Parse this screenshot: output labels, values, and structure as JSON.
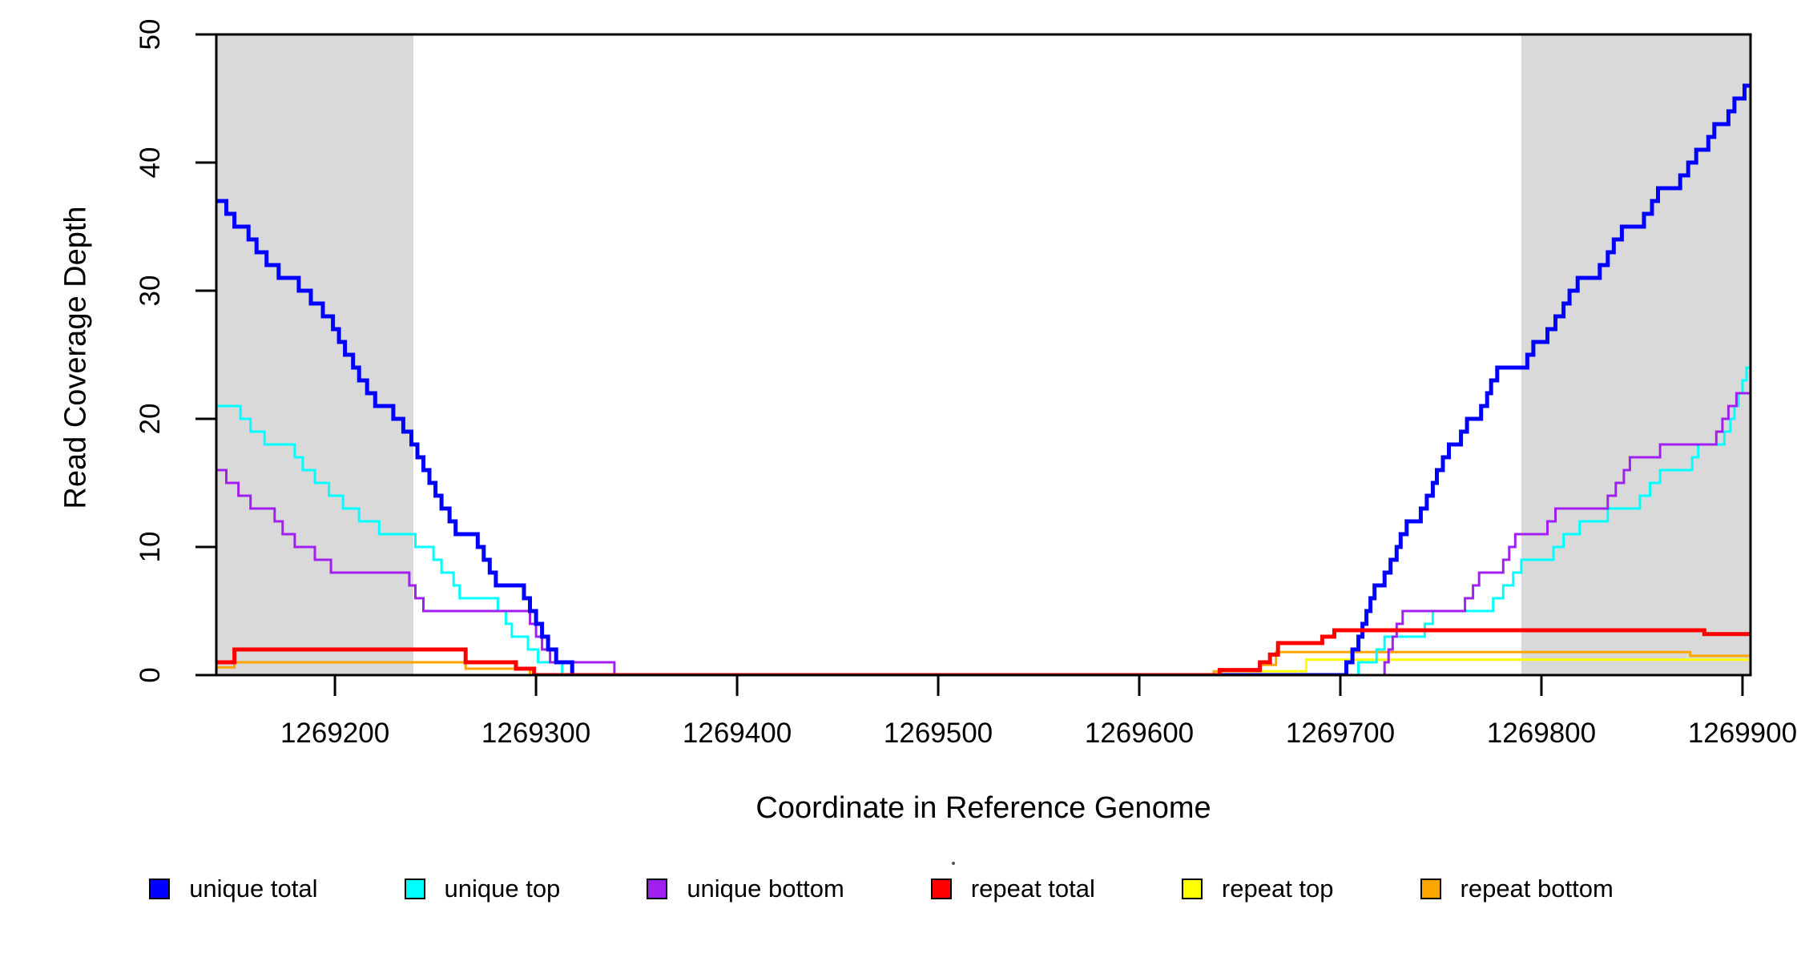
{
  "axes": {
    "xlabel": "Coordinate in Reference Genome",
    "ylabel": "Read Coverage Depth",
    "xlim": [
      1269141,
      1269904
    ],
    "ylim": [
      0,
      50
    ],
    "xticks": [
      {
        "value": 1269200,
        "label": "1269200"
      },
      {
        "value": 1269300,
        "label": "1269300"
      },
      {
        "value": 1269400,
        "label": "1269400"
      },
      {
        "value": 1269500,
        "label": "1269500"
      },
      {
        "value": 1269600,
        "label": "1269600"
      },
      {
        "value": 1269700,
        "label": "1269700"
      },
      {
        "value": 1269800,
        "label": "1269800"
      },
      {
        "value": 1269900,
        "label": "1269900"
      }
    ],
    "yticks": [
      {
        "value": 0,
        "label": "0"
      },
      {
        "value": 10,
        "label": "10"
      },
      {
        "value": 20,
        "label": "20"
      },
      {
        "value": 30,
        "label": "30"
      },
      {
        "value": 40,
        "label": "40"
      },
      {
        "value": 50,
        "label": "50"
      }
    ]
  },
  "chart_data": {
    "type": "line",
    "subtype": "step-coverage",
    "grid": false,
    "legend_position": "bottom",
    "background_color": "#ffffff",
    "shaded_band_color": "#d9d9d9",
    "shaded_regions": [
      {
        "name": "left-unique-flank",
        "from": 1269141,
        "to": 1269239
      },
      {
        "name": "right-unique-flank",
        "from": 1269790,
        "to": 1269904
      }
    ],
    "series": [
      {
        "name": "repeat top",
        "color": "#ffff00",
        "width": 3,
        "points": [
          [
            1269141,
            0
          ],
          [
            1269655,
            0.3
          ],
          [
            1269683,
            1.2
          ]
        ]
      },
      {
        "name": "repeat bottom",
        "color": "#ffa500",
        "width": 3,
        "points": [
          [
            1269141,
            0.6
          ],
          [
            1269150,
            1
          ],
          [
            1269265,
            0.5
          ],
          [
            1269297,
            0
          ],
          [
            1269637,
            0.3
          ],
          [
            1269660,
            0.8
          ],
          [
            1269668,
            1.8
          ],
          [
            1269874,
            1.5
          ]
        ]
      },
      {
        "name": "unique top",
        "color": "#00ffff",
        "width": 3,
        "points": [
          [
            1269141,
            21
          ],
          [
            1269153,
            20
          ],
          [
            1269158,
            19
          ],
          [
            1269165,
            18
          ],
          [
            1269180,
            17
          ],
          [
            1269184,
            16
          ],
          [
            1269190,
            15
          ],
          [
            1269197,
            14
          ],
          [
            1269204,
            13
          ],
          [
            1269212,
            12
          ],
          [
            1269222,
            11
          ],
          [
            1269240,
            10
          ],
          [
            1269249,
            9
          ],
          [
            1269253,
            8
          ],
          [
            1269259,
            7
          ],
          [
            1269262,
            6
          ],
          [
            1269281,
            5
          ],
          [
            1269285,
            4
          ],
          [
            1269288,
            3
          ],
          [
            1269296,
            2
          ],
          [
            1269301,
            1
          ],
          [
            1269313,
            0
          ],
          [
            1269706,
            0
          ],
          [
            1269709,
            1
          ],
          [
            1269718,
            2
          ],
          [
            1269722,
            3
          ],
          [
            1269742,
            4
          ],
          [
            1269746,
            5
          ],
          [
            1269776,
            6
          ],
          [
            1269781,
            7
          ],
          [
            1269786,
            8
          ],
          [
            1269790,
            9
          ],
          [
            1269806,
            10
          ],
          [
            1269811,
            11
          ],
          [
            1269819,
            12
          ],
          [
            1269833,
            13
          ],
          [
            1269849,
            14
          ],
          [
            1269854,
            15
          ],
          [
            1269859,
            16
          ],
          [
            1269875,
            17
          ],
          [
            1269878,
            18
          ],
          [
            1269891,
            19
          ],
          [
            1269894,
            20
          ],
          [
            1269896,
            21
          ],
          [
            1269898,
            22
          ],
          [
            1269900,
            23
          ],
          [
            1269902,
            24
          ]
        ]
      },
      {
        "name": "unique bottom",
        "color": "#a020f0",
        "width": 3,
        "points": [
          [
            1269141,
            16
          ],
          [
            1269146,
            15
          ],
          [
            1269152,
            14
          ],
          [
            1269158,
            13
          ],
          [
            1269170,
            12
          ],
          [
            1269174,
            11
          ],
          [
            1269180,
            10
          ],
          [
            1269190,
            9
          ],
          [
            1269198,
            8
          ],
          [
            1269237,
            7
          ],
          [
            1269240,
            6
          ],
          [
            1269244,
            5
          ],
          [
            1269297,
            4
          ],
          [
            1269300,
            3
          ],
          [
            1269303,
            2
          ],
          [
            1269307,
            1
          ],
          [
            1269339,
            0
          ],
          [
            1269719,
            0
          ],
          [
            1269722,
            1
          ],
          [
            1269724,
            2
          ],
          [
            1269726,
            3
          ],
          [
            1269728,
            4
          ],
          [
            1269731,
            5
          ],
          [
            1269762,
            6
          ],
          [
            1269766,
            7
          ],
          [
            1269769,
            8
          ],
          [
            1269781,
            9
          ],
          [
            1269784,
            10
          ],
          [
            1269787,
            11
          ],
          [
            1269803,
            12
          ],
          [
            1269807,
            13
          ],
          [
            1269833,
            14
          ],
          [
            1269837,
            15
          ],
          [
            1269841,
            16
          ],
          [
            1269844,
            17
          ],
          [
            1269859,
            18
          ],
          [
            1269887,
            19
          ],
          [
            1269890,
            20
          ],
          [
            1269893,
            21
          ],
          [
            1269897,
            22
          ]
        ]
      },
      {
        "name": "unique total",
        "color": "#0000ff",
        "width": 5,
        "points": [
          [
            1269141,
            37
          ],
          [
            1269146,
            36
          ],
          [
            1269150,
            35
          ],
          [
            1269157,
            34
          ],
          [
            1269161,
            33
          ],
          [
            1269166,
            32
          ],
          [
            1269172,
            31
          ],
          [
            1269182,
            30
          ],
          [
            1269188,
            29
          ],
          [
            1269194,
            28
          ],
          [
            1269199,
            27
          ],
          [
            1269202,
            26
          ],
          [
            1269205,
            25
          ],
          [
            1269209,
            24
          ],
          [
            1269212,
            23
          ],
          [
            1269216,
            22
          ],
          [
            1269220,
            21
          ],
          [
            1269229,
            20
          ],
          [
            1269234,
            19
          ],
          [
            1269238,
            18
          ],
          [
            1269241,
            17
          ],
          [
            1269244,
            16
          ],
          [
            1269247,
            15
          ],
          [
            1269250,
            14
          ],
          [
            1269253,
            13
          ],
          [
            1269257,
            12
          ],
          [
            1269260,
            11
          ],
          [
            1269271,
            10
          ],
          [
            1269274,
            9
          ],
          [
            1269277,
            8
          ],
          [
            1269280,
            7
          ],
          [
            1269294,
            6
          ],
          [
            1269297,
            5
          ],
          [
            1269300,
            4
          ],
          [
            1269303,
            3
          ],
          [
            1269306,
            2
          ],
          [
            1269310,
            1
          ],
          [
            1269318,
            0
          ],
          [
            1269700,
            0
          ],
          [
            1269703,
            1
          ],
          [
            1269706,
            2
          ],
          [
            1269709,
            3
          ],
          [
            1269711,
            4
          ],
          [
            1269713,
            5
          ],
          [
            1269715,
            6
          ],
          [
            1269717,
            7
          ],
          [
            1269722,
            8
          ],
          [
            1269725,
            9
          ],
          [
            1269728,
            10
          ],
          [
            1269730,
            11
          ],
          [
            1269733,
            12
          ],
          [
            1269740,
            13
          ],
          [
            1269743,
            14
          ],
          [
            1269746,
            15
          ],
          [
            1269748,
            16
          ],
          [
            1269751,
            17
          ],
          [
            1269754,
            18
          ],
          [
            1269760,
            19
          ],
          [
            1269763,
            20
          ],
          [
            1269770,
            21
          ],
          [
            1269773,
            22
          ],
          [
            1269775,
            23
          ],
          [
            1269778,
            24
          ],
          [
            1269793,
            25
          ],
          [
            1269796,
            26
          ],
          [
            1269803,
            27
          ],
          [
            1269807,
            28
          ],
          [
            1269811,
            29
          ],
          [
            1269814,
            30
          ],
          [
            1269818,
            31
          ],
          [
            1269829,
            32
          ],
          [
            1269833,
            33
          ],
          [
            1269836,
            34
          ],
          [
            1269840,
            35
          ],
          [
            1269851,
            36
          ],
          [
            1269855,
            37
          ],
          [
            1269858,
            38
          ],
          [
            1269869,
            39
          ],
          [
            1269873,
            40
          ],
          [
            1269877,
            41
          ],
          [
            1269883,
            42
          ],
          [
            1269886,
            43
          ],
          [
            1269893,
            44
          ],
          [
            1269896,
            45
          ],
          [
            1269901,
            46
          ]
        ]
      },
      {
        "name": "repeat total",
        "color": "#ff0000",
        "width": 5,
        "points": [
          [
            1269141,
            1
          ],
          [
            1269150,
            2
          ],
          [
            1269265,
            1
          ],
          [
            1269290,
            0.5
          ],
          [
            1269299,
            0
          ],
          [
            1269640,
            0.4
          ],
          [
            1269660,
            1
          ],
          [
            1269665,
            1.6
          ],
          [
            1269669,
            2.5
          ],
          [
            1269691,
            3
          ],
          [
            1269697,
            3.5
          ],
          [
            1269881,
            3.2
          ]
        ]
      }
    ],
    "legend": [
      {
        "label": "unique total",
        "color": "#0000ff"
      },
      {
        "label": "unique top",
        "color": "#00ffff"
      },
      {
        "label": "unique bottom",
        "color": "#a020f0"
      },
      {
        "label": "repeat total",
        "color": "#ff0000"
      },
      {
        "label": "repeat top",
        "color": "#ffff00"
      },
      {
        "label": "repeat bottom",
        "color": "#ffa500"
      }
    ]
  }
}
